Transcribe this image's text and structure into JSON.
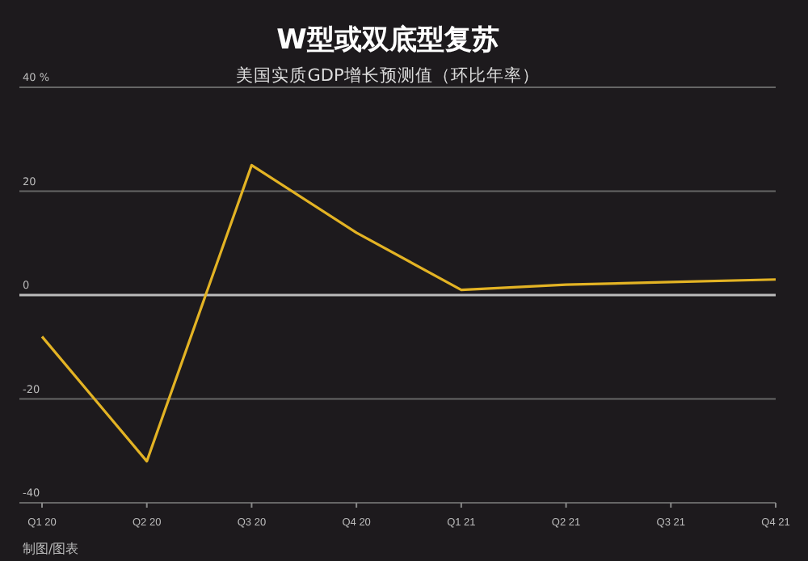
{
  "chart_data": {
    "type": "line",
    "title": "W型或双底型复苏",
    "subtitle": "美国实质GDP增长预测值（环比年率）",
    "categories": [
      "Q1 20",
      "Q2 20",
      "Q3 20",
      "Q4 20",
      "Q1 21",
      "Q2 21",
      "Q3 21",
      "Q4 21"
    ],
    "series": [
      {
        "color": "#e3b324",
        "values": [
          -8,
          -32,
          25,
          12,
          1,
          2,
          2.5,
          3
        ]
      }
    ],
    "ylim": [
      -40,
      40
    ],
    "yticks": [
      -40,
      -20,
      0,
      20,
      {
        "value": 40,
        "label": "40 %"
      }
    ],
    "grid": "y",
    "marker": "none",
    "line_style": "solid",
    "annotations": [
      "制图/图表"
    ]
  }
}
